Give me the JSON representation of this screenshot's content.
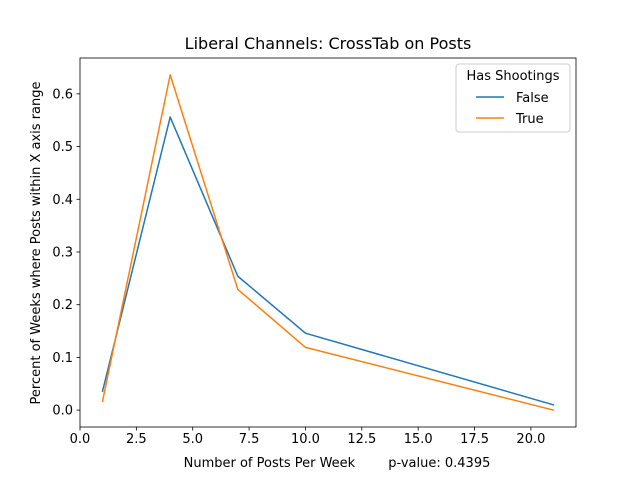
{
  "chart_data": {
    "type": "line",
    "title": "Liberal Channels: CrossTab on Posts",
    "xlabel": "Number of Posts Per Week        p-value: 0.4395",
    "ylabel": "Percent of Weeks where Posts within X axis range",
    "xlim": [
      0.0,
      22.0
    ],
    "ylim": [
      -0.032,
      0.668
    ],
    "xticks": [
      0.0,
      2.5,
      5.0,
      7.5,
      10.0,
      12.5,
      15.0,
      17.5,
      20.0
    ],
    "xtick_labels": [
      "0.0",
      "2.5",
      "5.0",
      "7.5",
      "10.0",
      "12.5",
      "15.0",
      "17.5",
      "20.0"
    ],
    "yticks": [
      0.0,
      0.1,
      0.2,
      0.3,
      0.4,
      0.5,
      0.6
    ],
    "ytick_labels": [
      "0.0",
      "0.1",
      "0.2",
      "0.3",
      "0.4",
      "0.5",
      "0.6"
    ],
    "grid": false,
    "legend": {
      "title": "Has Shootings",
      "placement": "top-right"
    },
    "series": [
      {
        "name": "False",
        "color": "#1f77b4",
        "x": [
          1,
          4,
          7,
          10,
          21
        ],
        "y": [
          0.036,
          0.556,
          0.254,
          0.146,
          0.01
        ]
      },
      {
        "name": "True",
        "color": "#ff7f0e",
        "x": [
          1,
          4,
          7,
          10,
          21
        ],
        "y": [
          0.017,
          0.636,
          0.229,
          0.119,
          0.0
        ]
      }
    ]
  }
}
